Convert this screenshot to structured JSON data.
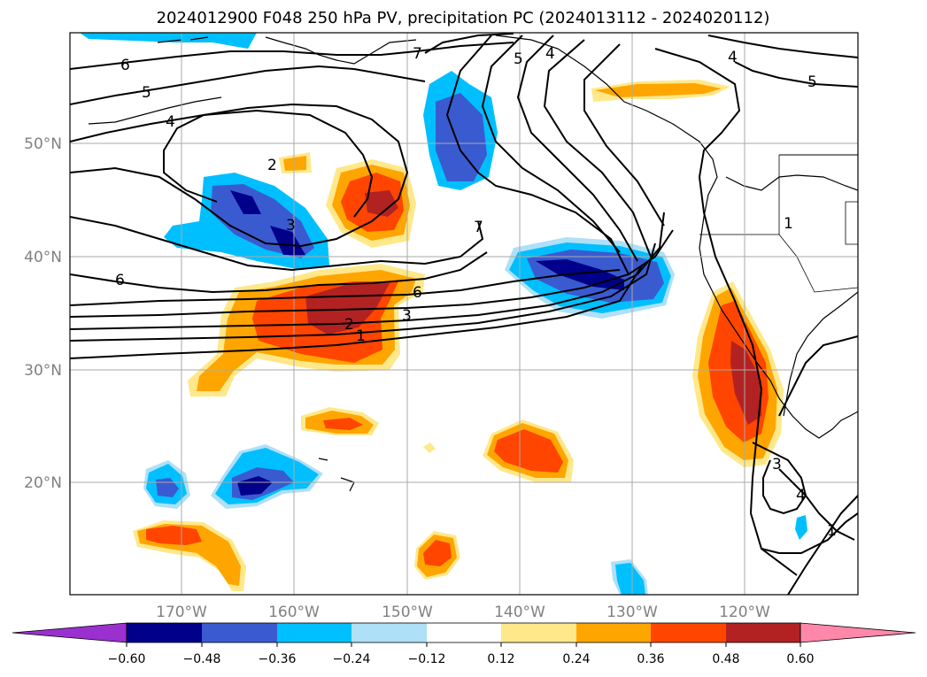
{
  "title": "2024012900 F048 250 hPa PV, precipitation PC (2024013112 - 2024020112)",
  "map": {
    "lon_labels": [
      "170°W",
      "160°W",
      "150°W",
      "140°W",
      "130°W",
      "120°W"
    ],
    "lat_labels": [
      "50°N",
      "40°N",
      "30°N",
      "20°N"
    ],
    "grid": true,
    "pv_contour_labels": [
      "6",
      "5",
      "4",
      "7",
      "5",
      "4",
      "4",
      "5",
      "2",
      "3",
      "7",
      "6",
      "6",
      "3",
      "2",
      "1",
      "1",
      "3",
      "4",
      "1"
    ]
  },
  "colorbar": {
    "tick_labels": [
      "−0.60",
      "−0.48",
      "−0.36",
      "−0.24",
      "−0.12",
      "0.12",
      "0.24",
      "0.36",
      "0.48",
      "0.60"
    ],
    "colors": {
      "under": "#9b30d0",
      "neg060": "#00008b",
      "neg048": "#3a5bd0",
      "neg036": "#00bfff",
      "neg024": "#aee0f7",
      "neutral": "#ffffff",
      "pos012": "#ffe88a",
      "pos024": "#ffa500",
      "pos036": "#ff4500",
      "pos048": "#b22222",
      "over": "#ff88aa"
    }
  }
}
